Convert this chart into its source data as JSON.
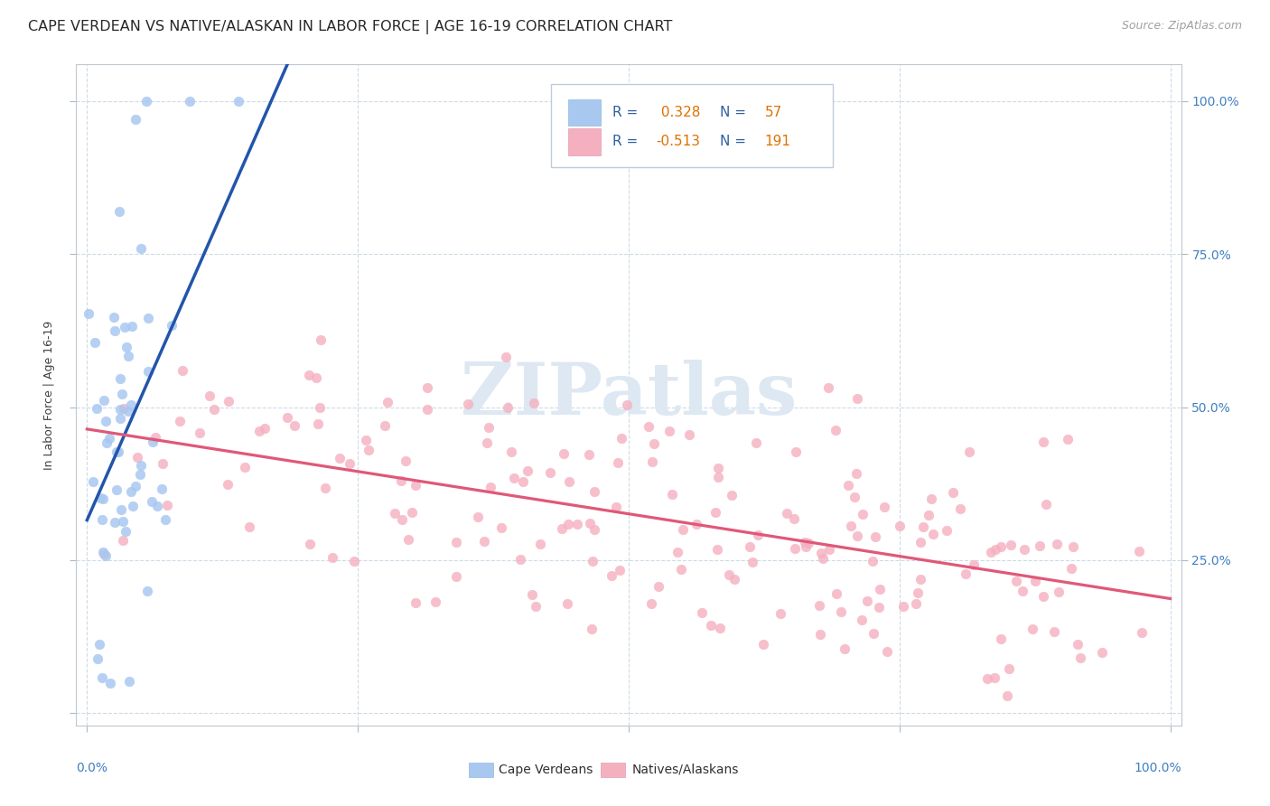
{
  "title": "CAPE VERDEAN VS NATIVE/ALASKAN IN LABOR FORCE | AGE 16-19 CORRELATION CHART",
  "source": "Source: ZipAtlas.com",
  "ylabel": "In Labor Force | Age 16-19",
  "legend_label1": "Cape Verdeans",
  "legend_label2": "Natives/Alaskans",
  "r1": 0.328,
  "n1": 57,
  "r2": -0.513,
  "n2": 191,
  "color_blue": "#A8C8F0",
  "color_pink": "#F5B0C0",
  "color_trendline_blue": "#2255AA",
  "color_trendline_pink": "#E05878",
  "color_dashed": "#9BB8D8",
  "background": "#FFFFFF",
  "watermark": "ZIPatlas",
  "grid_color": "#C8D8E4",
  "right_tick_color": "#4080C0",
  "title_fontsize": 11.5,
  "axis_label_fontsize": 9,
  "tick_fontsize": 10,
  "legend_fontsize": 10,
  "source_fontsize": 9
}
